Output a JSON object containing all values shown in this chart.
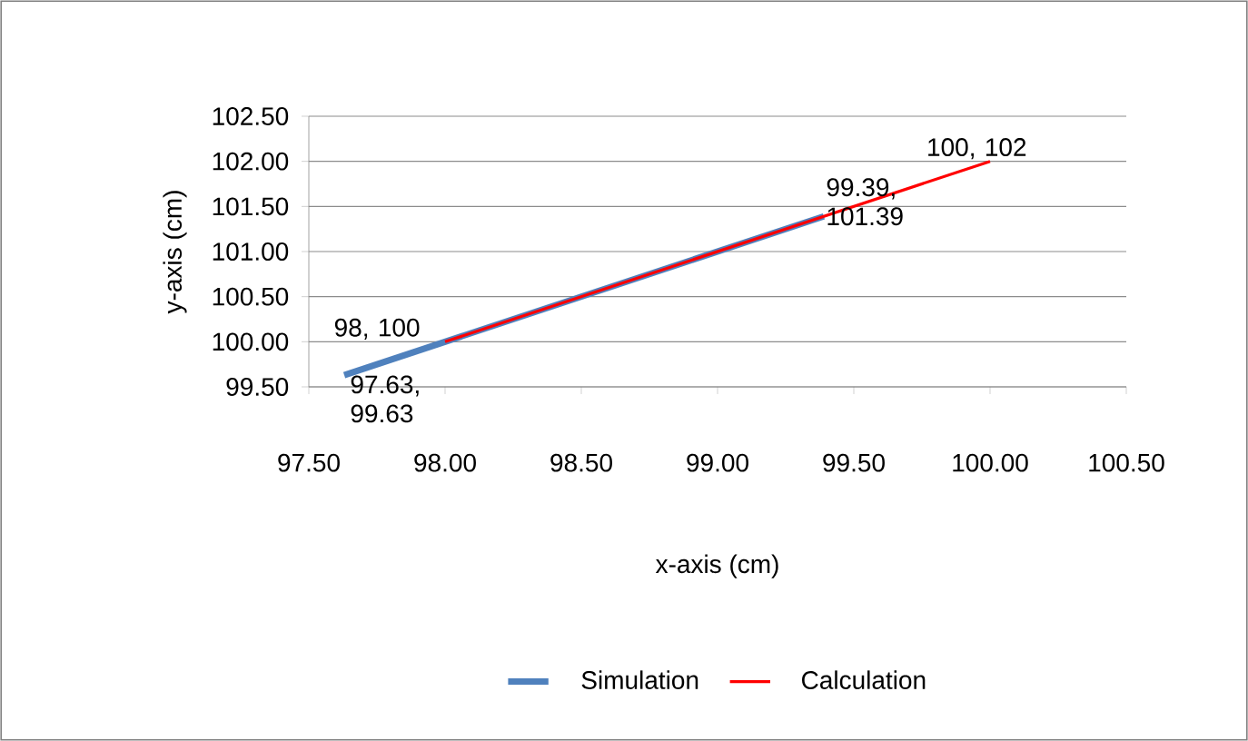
{
  "chart_data": {
    "type": "line",
    "xlabel": "x-axis (cm)",
    "ylabel": "y-axis (cm)",
    "xlim": [
      97.5,
      100.5
    ],
    "xticks": [
      {
        "value": 97.5,
        "label": "97.50"
      },
      {
        "value": 98,
        "label": "98.00"
      },
      {
        "value": 98.5,
        "label": "98.50"
      },
      {
        "value": 99,
        "label": "99.00"
      },
      {
        "value": 99.5,
        "label": "99.50"
      },
      {
        "value": 100,
        "label": "100.00"
      },
      {
        "value": 100.5,
        "label": "100.50"
      }
    ],
    "ylim": [
      99.5,
      102.5
    ],
    "yticks": [
      {
        "value": 99.5,
        "label": "99.50"
      },
      {
        "value": 100,
        "label": "100.00"
      },
      {
        "value": 100.5,
        "label": "100.50"
      },
      {
        "value": 101,
        "label": "101.00"
      },
      {
        "value": 101.5,
        "label": "101.50"
      },
      {
        "value": 102,
        "label": "102.00"
      },
      {
        "value": 102.5,
        "label": "102.50"
      }
    ],
    "grid": "y",
    "legend": "bottom",
    "marker": "none",
    "line_style": "solid",
    "series": [
      {
        "name": "Simulation",
        "color": "#4f81bd",
        "x": [
          97.63,
          99.39
        ],
        "values": [
          99.63,
          101.39
        ]
      },
      {
        "name": "Calculation",
        "color": "#ff0000",
        "x": [
          98,
          100
        ],
        "values": [
          100,
          102
        ]
      }
    ],
    "annotations": [
      {
        "text": "97.63, 99.63",
        "x": 97.63,
        "y": 99.63
      },
      {
        "text": "98, 100",
        "x": 98,
        "y": 100
      },
      {
        "text": "99.39, 101.39",
        "x": 99.39,
        "y": 101.39
      },
      {
        "text": "100, 102",
        "x": 100,
        "y": 102
      }
    ]
  }
}
